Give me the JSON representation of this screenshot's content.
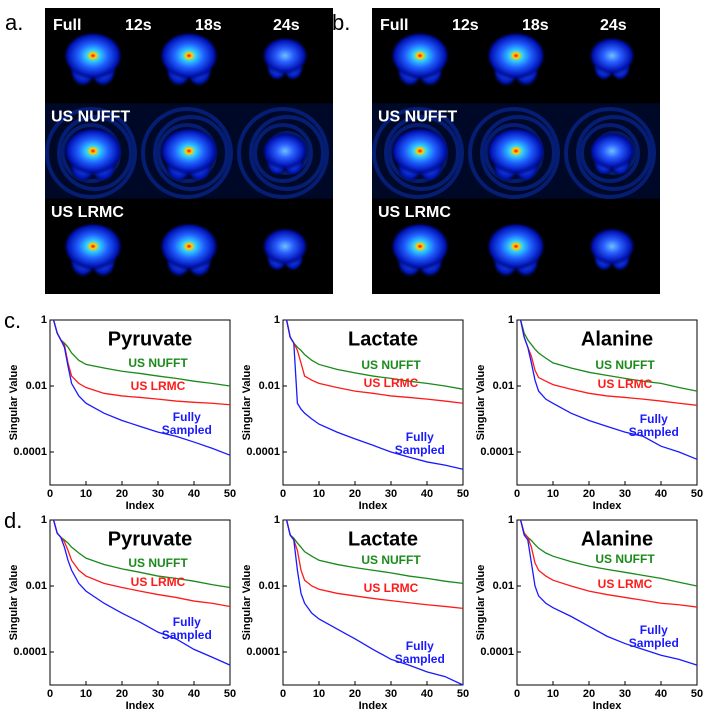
{
  "panels": [
    {
      "label": "a.",
      "header": [
        "Full",
        "12s",
        "18s",
        "24s"
      ],
      "rows": [
        "US NUFFT",
        "US LRMC"
      ]
    },
    {
      "label": "b.",
      "header": [
        "Full",
        "12s",
        "18s",
        "24s"
      ],
      "rows": [
        "US NUFFT",
        "US LRMC"
      ]
    }
  ],
  "row_labels": [
    "c.",
    "d."
  ],
  "chart_data": [
    {
      "type": "line",
      "title": "Pyruvate",
      "xlabel": "Index",
      "ylabel": "Singular Value",
      "log_y": true,
      "x": [
        1,
        2,
        3,
        4,
        5,
        6,
        8,
        10,
        15,
        20,
        25,
        30,
        35,
        40,
        45,
        50
      ],
      "xlim": [
        0,
        50
      ],
      "xticks": [
        0,
        10,
        20,
        30,
        40,
        50
      ],
      "ylim": [
        1e-05,
        1
      ],
      "yticks": [
        1,
        0.01,
        0.0001
      ],
      "series": [
        {
          "name": "US NUFFT",
          "color": "#1a8a1a",
          "values": [
            1,
            0.4,
            0.25,
            0.2,
            0.15,
            0.1,
            0.06,
            0.045,
            0.035,
            0.028,
            0.024,
            0.02,
            0.017,
            0.014,
            0.012,
            0.01
          ]
        },
        {
          "name": "US LRMC",
          "color": "#ff1a1a",
          "values": [
            1,
            0.4,
            0.25,
            0.18,
            0.05,
            0.02,
            0.012,
            0.009,
            0.006,
            0.005,
            0.0045,
            0.004,
            0.0035,
            0.0032,
            0.003,
            0.0027
          ]
        },
        {
          "name": "Fully Sampled",
          "color": "#1a1aff",
          "values": [
            1,
            0.4,
            0.25,
            0.15,
            0.04,
            0.012,
            0.005,
            0.003,
            0.0015,
            0.0009,
            0.0006,
            0.0004,
            0.0003,
            0.0002,
            0.00013,
            8e-05
          ]
        }
      ]
    },
    {
      "type": "line",
      "title": "Lactate",
      "xlabel": "Index",
      "ylabel": "Singular Value",
      "log_y": true,
      "x": [
        1,
        2,
        3,
        4,
        5,
        6,
        8,
        10,
        15,
        20,
        25,
        30,
        35,
        40,
        45,
        50
      ],
      "xlim": [
        0,
        50
      ],
      "xticks": [
        0,
        10,
        20,
        30,
        40,
        50
      ],
      "ylim": [
        1e-05,
        1
      ],
      "yticks": [
        1,
        0.01,
        0.0001
      ],
      "series": [
        {
          "name": "US NUFFT",
          "color": "#1a8a1a",
          "values": [
            1,
            0.3,
            0.2,
            0.15,
            0.12,
            0.09,
            0.06,
            0.045,
            0.032,
            0.025,
            0.02,
            0.017,
            0.014,
            0.012,
            0.01,
            0.008
          ]
        },
        {
          "name": "US LRMC",
          "color": "#ff1a1a",
          "values": [
            1,
            0.3,
            0.2,
            0.12,
            0.05,
            0.02,
            0.015,
            0.012,
            0.009,
            0.007,
            0.006,
            0.005,
            0.0045,
            0.004,
            0.0035,
            0.003
          ]
        },
        {
          "name": "Fully Sampled",
          "color": "#1a1aff",
          "values": [
            1,
            0.3,
            0.2,
            0.003,
            0.002,
            0.0015,
            0.001,
            0.0007,
            0.0004,
            0.00025,
            0.00016,
            0.0001,
            7e-05,
            5e-05,
            4e-05,
            3e-05
          ]
        }
      ]
    },
    {
      "type": "line",
      "title": "Alanine",
      "xlabel": "Index",
      "ylabel": "Singular Value",
      "log_y": true,
      "x": [
        1,
        2,
        3,
        4,
        5,
        6,
        8,
        10,
        15,
        20,
        25,
        30,
        35,
        40,
        45,
        50
      ],
      "xlim": [
        0,
        50
      ],
      "xticks": [
        0,
        10,
        20,
        30,
        40,
        50
      ],
      "ylim": [
        1e-05,
        1
      ],
      "yticks": [
        1,
        0.01,
        0.0001
      ],
      "series": [
        {
          "name": "US NUFFT",
          "color": "#1a8a1a",
          "values": [
            1,
            0.4,
            0.25,
            0.18,
            0.13,
            0.1,
            0.07,
            0.05,
            0.035,
            0.026,
            0.021,
            0.017,
            0.014,
            0.012,
            0.009,
            0.007
          ]
        },
        {
          "name": "US LRMC",
          "color": "#ff1a1a",
          "values": [
            1,
            0.3,
            0.15,
            0.08,
            0.03,
            0.018,
            0.014,
            0.011,
            0.008,
            0.006,
            0.005,
            0.0045,
            0.004,
            0.0035,
            0.003,
            0.0026
          ]
        },
        {
          "name": "Fully Sampled",
          "color": "#1a1aff",
          "values": [
            1,
            0.3,
            0.15,
            0.05,
            0.015,
            0.007,
            0.004,
            0.003,
            0.0015,
            0.0009,
            0.0006,
            0.0004,
            0.0003,
            0.00015,
            0.0001,
            6e-05
          ]
        }
      ]
    },
    {
      "type": "line",
      "title": "Pyruvate",
      "xlabel": "Index",
      "ylabel": "Singular Value",
      "log_y": true,
      "x": [
        1,
        2,
        3,
        4,
        5,
        6,
        8,
        10,
        15,
        20,
        25,
        30,
        35,
        40,
        45,
        50
      ],
      "xlim": [
        0,
        50
      ],
      "xticks": [
        0,
        10,
        20,
        30,
        40,
        50
      ],
      "ylim": [
        1e-05,
        1
      ],
      "yticks": [
        1,
        0.01,
        0.0001
      ],
      "series": [
        {
          "name": "US NUFFT",
          "color": "#1a8a1a",
          "values": [
            1,
            0.4,
            0.3,
            0.25,
            0.2,
            0.15,
            0.1,
            0.07,
            0.045,
            0.033,
            0.026,
            0.02,
            0.017,
            0.014,
            0.011,
            0.009
          ]
        },
        {
          "name": "US LRMC",
          "color": "#ff1a1a",
          "values": [
            1,
            0.4,
            0.3,
            0.22,
            0.12,
            0.06,
            0.03,
            0.02,
            0.012,
            0.009,
            0.007,
            0.0055,
            0.0045,
            0.0035,
            0.003,
            0.0024
          ]
        },
        {
          "name": "Fully Sampled",
          "color": "#1a1aff",
          "values": [
            1,
            0.4,
            0.3,
            0.15,
            0.06,
            0.03,
            0.012,
            0.007,
            0.003,
            0.0015,
            0.0008,
            0.0004,
            0.00025,
            0.00012,
            7e-05,
            4e-05
          ]
        }
      ]
    },
    {
      "type": "line",
      "title": "Lactate",
      "xlabel": "Index",
      "ylabel": "Singular Value",
      "log_y": true,
      "x": [
        1,
        2,
        3,
        4,
        5,
        6,
        8,
        10,
        15,
        20,
        25,
        30,
        35,
        40,
        45,
        50
      ],
      "xlim": [
        0,
        50
      ],
      "xticks": [
        0,
        10,
        20,
        30,
        40,
        50
      ],
      "ylim": [
        1e-05,
        1
      ],
      "yticks": [
        1,
        0.01,
        0.0001
      ],
      "series": [
        {
          "name": "US NUFFT",
          "color": "#1a8a1a",
          "values": [
            1,
            0.35,
            0.28,
            0.2,
            0.15,
            0.11,
            0.08,
            0.06,
            0.045,
            0.036,
            0.03,
            0.025,
            0.02,
            0.017,
            0.014,
            0.012
          ]
        },
        {
          "name": "US LRMC",
          "color": "#ff1a1a",
          "values": [
            1,
            0.35,
            0.25,
            0.12,
            0.03,
            0.015,
            0.01,
            0.008,
            0.006,
            0.005,
            0.0042,
            0.0036,
            0.0031,
            0.0027,
            0.0024,
            0.0021
          ]
        },
        {
          "name": "Fully Sampled",
          "color": "#1a1aff",
          "values": [
            1,
            0.35,
            0.25,
            0.03,
            0.006,
            0.003,
            0.0015,
            0.001,
            0.0005,
            0.00025,
            0.00012,
            6e-05,
            4e-05,
            2.5e-05,
            1.8e-05,
            1e-05
          ]
        }
      ]
    },
    {
      "type": "line",
      "title": "Alanine",
      "xlabel": "Index",
      "ylabel": "Singular Value",
      "log_y": true,
      "x": [
        1,
        2,
        3,
        4,
        5,
        6,
        8,
        10,
        15,
        20,
        25,
        30,
        35,
        40,
        45,
        50
      ],
      "xlim": [
        0,
        50
      ],
      "xticks": [
        0,
        10,
        20,
        30,
        40,
        50
      ],
      "ylim": [
        1e-05,
        1
      ],
      "yticks": [
        1,
        0.01,
        0.0001
      ],
      "series": [
        {
          "name": "US NUFFT",
          "color": "#1a8a1a",
          "values": [
            1,
            0.4,
            0.3,
            0.24,
            0.18,
            0.14,
            0.1,
            0.08,
            0.055,
            0.04,
            0.032,
            0.026,
            0.021,
            0.017,
            0.013,
            0.01
          ]
        },
        {
          "name": "US LRMC",
          "color": "#ff1a1a",
          "values": [
            1,
            0.4,
            0.3,
            0.15,
            0.05,
            0.03,
            0.02,
            0.015,
            0.01,
            0.007,
            0.0055,
            0.0045,
            0.0037,
            0.003,
            0.0027,
            0.0023
          ]
        },
        {
          "name": "Fully Sampled",
          "color": "#1a1aff",
          "values": [
            1,
            0.35,
            0.25,
            0.05,
            0.01,
            0.005,
            0.003,
            0.0022,
            0.0012,
            0.0006,
            0.0003,
            0.00018,
            0.00012,
            8e-05,
            6e-05,
            4e-05
          ]
        }
      ]
    }
  ]
}
